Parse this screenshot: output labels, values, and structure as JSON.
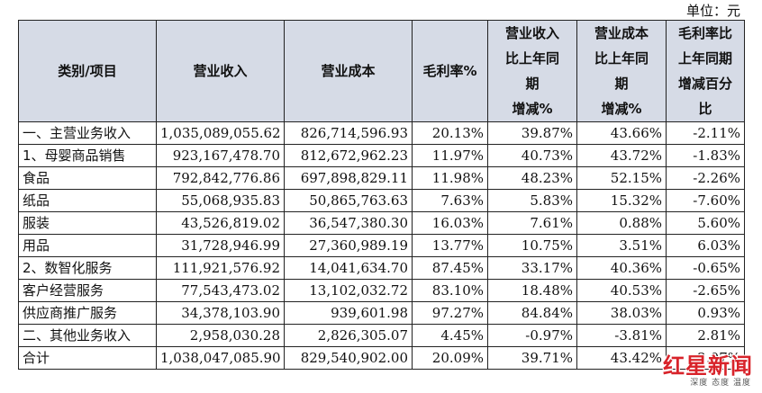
{
  "unit": "单位：元",
  "headers": {
    "category": "类别/项目",
    "revenue": "营业收入",
    "cost": "营业成本",
    "margin": "毛利率%",
    "rev_change": [
      "营业收入",
      "比上年同",
      "期",
      "增减%"
    ],
    "cost_change": [
      "营业成本",
      "比上年同",
      "期",
      "增减%"
    ],
    "margin_change": [
      "毛利率比",
      "上年同期",
      "增减百分",
      "比"
    ]
  },
  "rows": [
    {
      "category": "一、主营业务收入",
      "revenue": "1,035,089,055.62",
      "cost": "826,714,596.93",
      "margin": "20.13%",
      "rev_change": "39.87%",
      "cost_change": "43.66%",
      "margin_change": "-2.11%"
    },
    {
      "category": "1、母婴商品销售",
      "revenue": "923,167,478.70",
      "cost": "812,672,962.23",
      "margin": "11.97%",
      "rev_change": "40.73%",
      "cost_change": "43.72%",
      "margin_change": "-1.83%"
    },
    {
      "category": "食品",
      "revenue": "792,842,776.86",
      "cost": "697,898,829.11",
      "margin": "11.98%",
      "rev_change": "48.23%",
      "cost_change": "52.15%",
      "margin_change": "-2.26%"
    },
    {
      "category": "纸品",
      "revenue": "55,068,935.83",
      "cost": "50,865,763.63",
      "margin": "7.63%",
      "rev_change": "5.83%",
      "cost_change": "15.32%",
      "margin_change": "-7.60%"
    },
    {
      "category": "服装",
      "revenue": "43,526,819.02",
      "cost": "36,547,380.30",
      "margin": "16.03%",
      "rev_change": "7.61%",
      "cost_change": "0.88%",
      "margin_change": "5.60%"
    },
    {
      "category": "用品",
      "revenue": "31,728,946.99",
      "cost": "27,360,989.19",
      "margin": "13.77%",
      "rev_change": "10.75%",
      "cost_change": "3.51%",
      "margin_change": "6.03%"
    },
    {
      "category": "2、数智化服务",
      "revenue": "111,921,576.92",
      "cost": "14,041,634.70",
      "margin": "87.45%",
      "rev_change": "33.17%",
      "cost_change": "40.36%",
      "margin_change": "-0.65%"
    },
    {
      "category": "客户经营服务",
      "revenue": "77,543,473.02",
      "cost": "13,102,032.72",
      "margin": "83.10%",
      "rev_change": "18.48%",
      "cost_change": "40.53%",
      "margin_change": "-2.65%"
    },
    {
      "category": "供应商推广服务",
      "revenue": "34,378,103.90",
      "cost": "939,601.98",
      "margin": "97.27%",
      "rev_change": "84.84%",
      "cost_change": "38.03%",
      "margin_change": "0.93%"
    },
    {
      "category": "二、其他业务收入",
      "revenue": "2,958,030.28",
      "cost": "2,826,305.07",
      "margin": "4.45%",
      "rev_change": "-0.97%",
      "cost_change": "-3.81%",
      "margin_change": "2.81%"
    },
    {
      "category": "合计",
      "revenue": "1,038,047,085.90",
      "cost": "829,540,902.00",
      "margin": "20.09%",
      "rev_change": "39.71%",
      "cost_change": "43.42%",
      "margin_change": "-2.07%"
    }
  ],
  "watermark": {
    "main": "红星新闻",
    "sub": "深度 态度 温度"
  }
}
